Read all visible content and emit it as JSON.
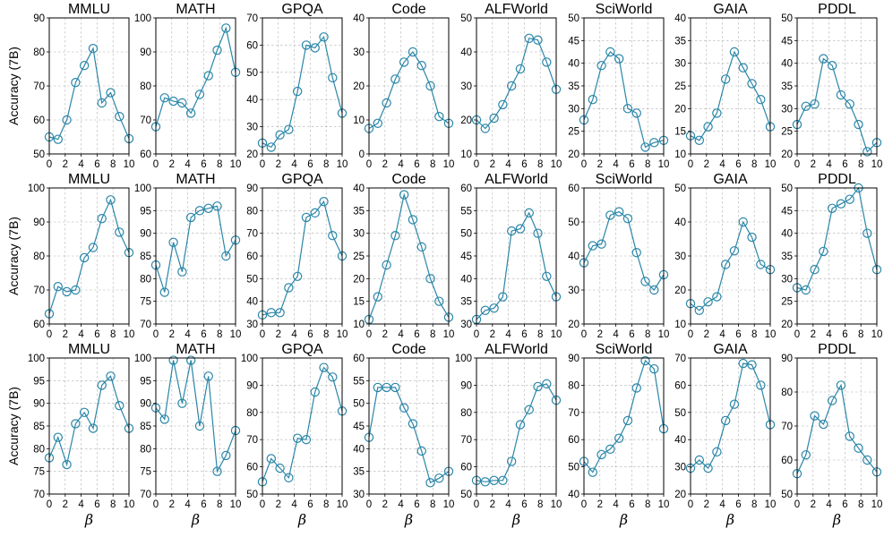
{
  "chart_data": {
    "type": "line",
    "layout": "3x8 grid of line subplots",
    "series_color": "#2a86a8",
    "marker": "open-circle",
    "x": [
      0,
      1.1,
      2.2,
      3.3,
      4.4,
      5.5,
      6.6,
      7.7,
      8.8,
      10
    ],
    "xlim": [
      0,
      10
    ],
    "xticks": [
      0,
      2,
      4,
      6,
      8,
      10
    ],
    "xlabel": "β",
    "ylabel": "Accuracy (7B)",
    "benchmarks": [
      "MMLU",
      "MATH",
      "GPQA",
      "Code",
      "ALFWorld",
      "SciWorld",
      "GAIA",
      "PDDL"
    ],
    "rows": [
      {
        "ylabel": "Accuracy (7B)",
        "panels": [
          {
            "title": "MMLU",
            "ylim": [
              50,
              90
            ],
            "yticks": [
              50,
              60,
              70,
              80,
              90
            ],
            "values": [
              55,
              54.3,
              60,
              71,
              76,
              81,
              65,
              68,
              61,
              54.5
            ]
          },
          {
            "title": "MATH",
            "ylim": [
              60,
              100
            ],
            "yticks": [
              60,
              70,
              80,
              90,
              100
            ],
            "values": [
              68,
              76.5,
              75.5,
              75,
              72,
              77.5,
              83,
              90.5,
              97,
              84
            ]
          },
          {
            "title": "GPQA",
            "ylim": [
              20,
              70
            ],
            "yticks": [
              20,
              30,
              40,
              50,
              60,
              70
            ],
            "values": [
              24,
              22.5,
              27,
              29,
              43,
              60,
              59,
              63,
              48,
              35
            ]
          },
          {
            "title": "Code",
            "ylim": [
              0,
              40
            ],
            "yticks": [
              0,
              10,
              20,
              30,
              40
            ],
            "values": [
              7.5,
              9,
              15,
              22,
              27,
              30,
              26,
              20,
              11,
              9
            ]
          },
          {
            "title": "ALFWorld",
            "ylim": [
              10,
              50
            ],
            "yticks": [
              10,
              20,
              30,
              40,
              50
            ],
            "values": [
              20,
              17.5,
              20.5,
              24.5,
              30,
              35,
              44,
              43.5,
              37,
              29
            ]
          },
          {
            "title": "SciWorld",
            "ylim": [
              20,
              50
            ],
            "yticks": [
              20,
              25,
              30,
              35,
              40,
              45,
              50
            ],
            "values": [
              27.5,
              32,
              39.5,
              42.5,
              41,
              30,
              29,
              21.5,
              22.5,
              23
            ]
          },
          {
            "title": "GAIA",
            "ylim": [
              10,
              40
            ],
            "yticks": [
              10,
              15,
              20,
              25,
              30,
              35,
              40
            ],
            "values": [
              14,
              13,
              16,
              19,
              26.5,
              32.5,
              29,
              25.5,
              22,
              16
            ]
          },
          {
            "title": "PDDL",
            "ylim": [
              20,
              50
            ],
            "yticks": [
              20,
              25,
              30,
              35,
              40,
              45,
              50
            ],
            "values": [
              26.5,
              30.5,
              31,
              41,
              39.5,
              33,
              31,
              26.5,
              20.5,
              22.5
            ]
          }
        ]
      },
      {
        "ylabel": "Accuracy (7B)",
        "panels": [
          {
            "title": "MMLU",
            "ylim": [
              60,
              100
            ],
            "yticks": [
              60,
              70,
              80,
              90,
              100
            ],
            "values": [
              63,
              71,
              69.5,
              70,
              79.5,
              82.5,
              91,
              96.5,
              87,
              81
            ]
          },
          {
            "title": "MATH",
            "ylim": [
              70,
              100
            ],
            "yticks": [
              70,
              75,
              80,
              85,
              90,
              95,
              100
            ],
            "values": [
              83,
              77,
              88,
              81.5,
              93.5,
              95,
              95.5,
              96,
              85,
              88.5
            ]
          },
          {
            "title": "GPQA",
            "ylim": [
              30,
              90
            ],
            "yticks": [
              30,
              40,
              50,
              60,
              70,
              80,
              90
            ],
            "values": [
              34,
              35,
              35,
              46,
              51,
              77,
              79,
              84,
              69,
              60
            ]
          },
          {
            "title": "Code",
            "ylim": [
              10,
              40
            ],
            "yticks": [
              10,
              15,
              20,
              25,
              30,
              35,
              40
            ],
            "values": [
              11,
              16,
              23,
              29.5,
              38.5,
              33,
              27,
              20,
              15,
              11.5
            ]
          },
          {
            "title": "ALFWorld",
            "ylim": [
              30,
              60
            ],
            "yticks": [
              30,
              35,
              40,
              45,
              50,
              55,
              60
            ],
            "values": [
              31,
              33,
              33.5,
              36,
              50.5,
              51,
              54.5,
              50,
              40.5,
              36
            ]
          },
          {
            "title": "SciWorld",
            "ylim": [
              20,
              60
            ],
            "yticks": [
              20,
              30,
              40,
              50,
              60
            ],
            "values": [
              38,
              43,
              43.5,
              52,
              53,
              51,
              41,
              32.5,
              30,
              34.5
            ]
          },
          {
            "title": "GAIA",
            "ylim": [
              10,
              50
            ],
            "yticks": [
              10,
              20,
              30,
              40,
              50
            ],
            "values": [
              16,
              14,
              16.5,
              18,
              27.5,
              31.5,
              40,
              35.5,
              27.5,
              26
            ]
          },
          {
            "title": "PDDL",
            "ylim": [
              20,
              50
            ],
            "yticks": [
              20,
              25,
              30,
              35,
              40,
              45,
              50
            ],
            "values": [
              28,
              27.5,
              32,
              36,
              45.5,
              46.5,
              47.5,
              50,
              40,
              32
            ]
          }
        ]
      },
      {
        "ylabel": "Accuracy (7B)",
        "panels": [
          {
            "title": "MMLU",
            "ylim": [
              70,
              100
            ],
            "yticks": [
              70,
              75,
              80,
              85,
              90,
              95,
              100
            ],
            "values": [
              78,
              82.5,
              76.5,
              85.5,
              88,
              84.5,
              94,
              96,
              89.5,
              84.5
            ]
          },
          {
            "title": "MATH",
            "ylim": [
              70,
              100
            ],
            "yticks": [
              70,
              75,
              80,
              85,
              90,
              95,
              100
            ],
            "values": [
              89,
              86.5,
              99.5,
              90,
              99.5,
              85,
              96,
              75,
              78.5,
              84
            ]
          },
          {
            "title": "GPQA",
            "ylim": [
              50,
              100
            ],
            "yticks": [
              50,
              60,
              70,
              80,
              90,
              100
            ],
            "values": [
              54.5,
              63,
              59.5,
              56,
              70.5,
              70,
              87.5,
              96.5,
              93,
              80.5
            ]
          },
          {
            "title": "Code",
            "ylim": [
              30,
              60
            ],
            "yticks": [
              30,
              35,
              40,
              45,
              50,
              55,
              60
            ],
            "values": [
              42.5,
              53.5,
              53.5,
              53.5,
              49,
              45.5,
              39.5,
              32.5,
              33.5,
              35
            ]
          },
          {
            "title": "ALFWorld",
            "ylim": [
              50,
              100
            ],
            "yticks": [
              50,
              60,
              70,
              80,
              90,
              100
            ],
            "values": [
              55,
              54.5,
              55,
              55,
              62,
              75.5,
              81,
              89.5,
              90.5,
              84.5
            ]
          },
          {
            "title": "SciWorld",
            "ylim": [
              40,
              90
            ],
            "yticks": [
              40,
              50,
              60,
              70,
              80,
              90
            ],
            "values": [
              52,
              48,
              54.5,
              56.5,
              60.5,
              67,
              79,
              89,
              86,
              64
            ]
          },
          {
            "title": "GAIA",
            "ylim": [
              20,
              70
            ],
            "yticks": [
              20,
              30,
              40,
              50,
              60,
              70
            ],
            "values": [
              29.5,
              32.5,
              29.5,
              35.5,
              47,
              53,
              68,
              67.5,
              60,
              45.5
            ]
          },
          {
            "title": "PDDL",
            "ylim": [
              50,
              90
            ],
            "yticks": [
              50,
              60,
              70,
              80,
              90
            ],
            "values": [
              56,
              61.5,
              73,
              70.5,
              77.5,
              82,
              67,
              63.5,
              60,
              56.5
            ]
          }
        ]
      }
    ]
  }
}
